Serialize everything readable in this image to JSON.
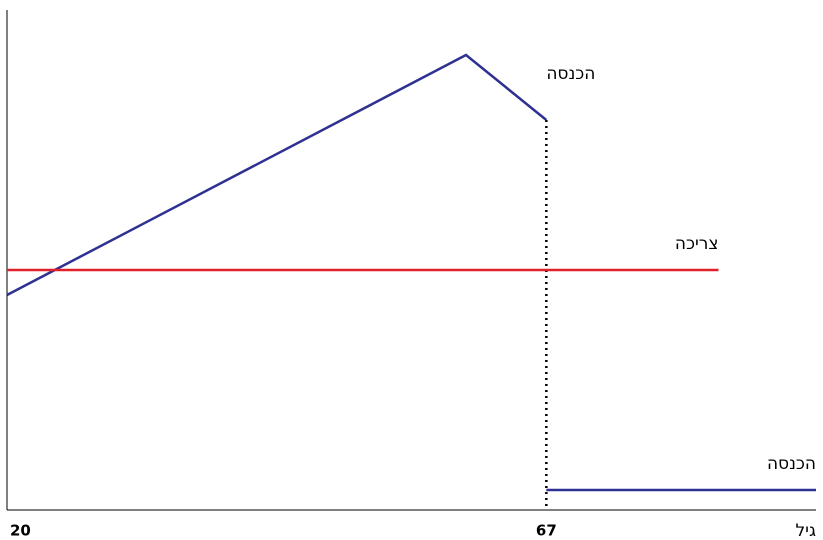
{
  "chart_data": {
    "type": "line",
    "xlabel": "גיל",
    "xlim": [
      20,
      90.5
    ],
    "xticks": [
      20,
      67
    ],
    "ylim": [
      0,
      100
    ],
    "series": [
      {
        "name": "הכנסה",
        "color": "#2e3192",
        "x": [
          20,
          60,
          67
        ],
        "values": [
          43,
          91,
          78
        ]
      },
      {
        "name": "צריכה",
        "color": "#e0202a",
        "x": [
          20,
          82
        ],
        "values": [
          48,
          48
        ]
      },
      {
        "name": "הכנסה",
        "color": "#2e3192",
        "x": [
          67,
          90.5
        ],
        "values": [
          4,
          4
        ]
      }
    ],
    "vlines": [
      {
        "x": 67,
        "style": "dotted"
      }
    ]
  }
}
